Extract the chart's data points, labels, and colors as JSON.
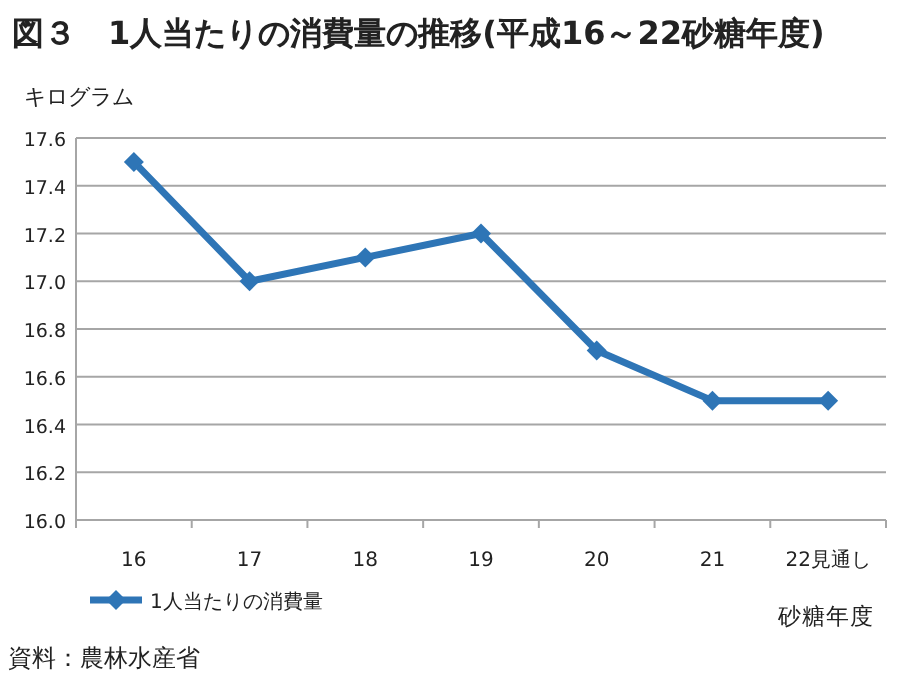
{
  "chart_data": {
    "type": "line",
    "title": "図３　1人当たりの消費量の推移(平成16～22砂糖年度)",
    "ylabel": "キログラム",
    "xlabel": "砂糖年度",
    "categories": [
      "16",
      "17",
      "18",
      "19",
      "20",
      "21",
      "22見通し"
    ],
    "series": [
      {
        "name": "1人当たりの消費量",
        "color": "#2e75b6",
        "values": [
          17.5,
          17.0,
          17.1,
          17.2,
          16.71,
          16.5,
          16.5
        ]
      }
    ],
    "ylim": [
      16.0,
      17.6
    ],
    "yticks": [
      {
        "value": 16.0,
        "label": "16.0"
      },
      {
        "value": 16.2,
        "label": "16.2"
      },
      {
        "value": 16.4,
        "label": "16.4"
      },
      {
        "value": 16.6,
        "label": "16.6"
      },
      {
        "value": 16.8,
        "label": "16.8"
      },
      {
        "value": 17.0,
        "label": "17.0"
      },
      {
        "value": 17.2,
        "label": "17.2"
      },
      {
        "value": 17.4,
        "label": "17.4"
      },
      {
        "value": 17.6,
        "label": "17.6"
      }
    ],
    "grid": "y",
    "legend": "bottom left",
    "marker": "diamond",
    "line_style": "solid",
    "annotations": [
      "資料：農林水産省"
    ]
  }
}
